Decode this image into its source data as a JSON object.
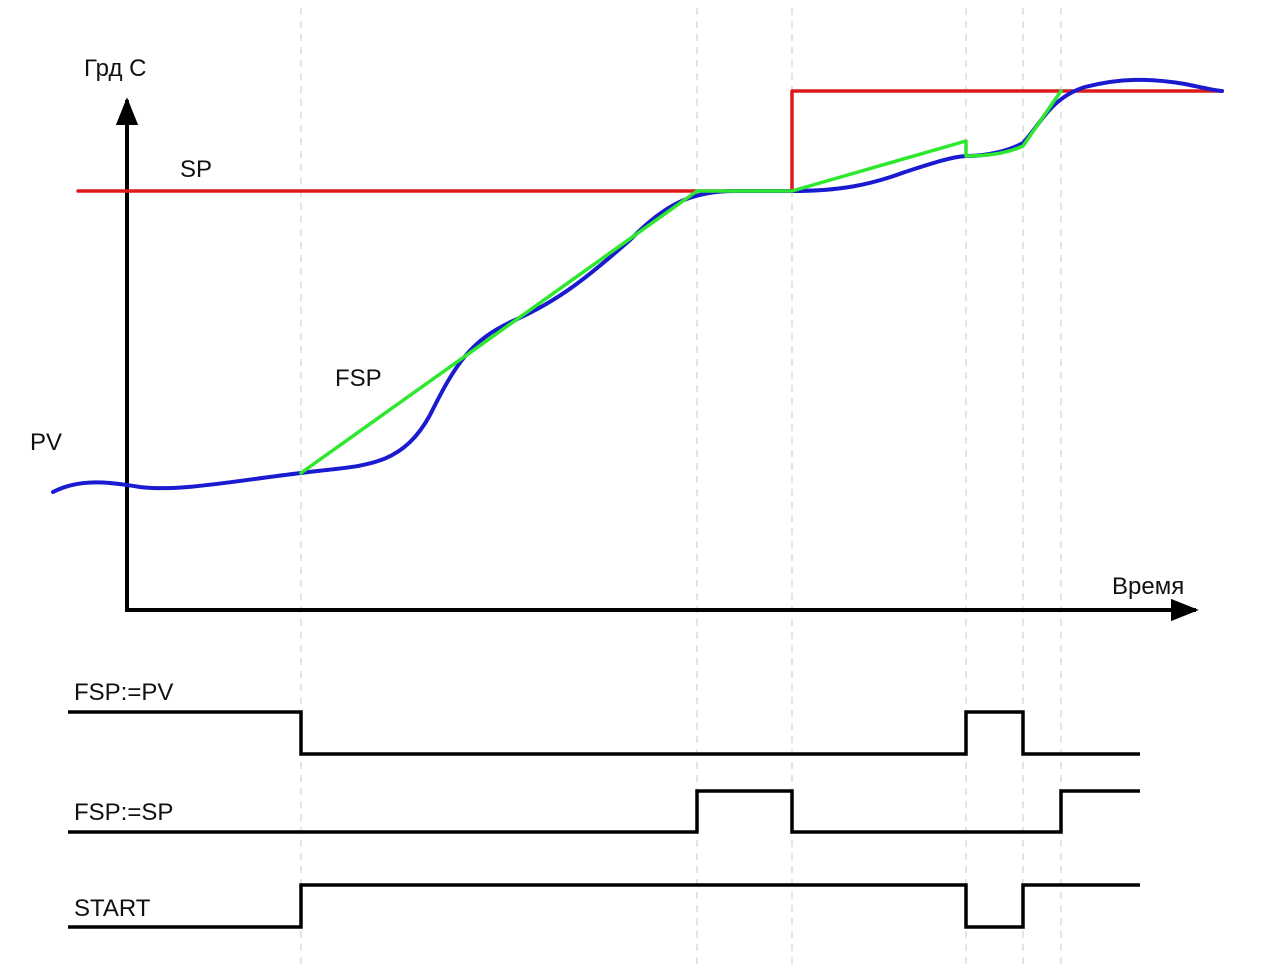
{
  "axes": {
    "y_label": "Грд С",
    "x_label": "Время"
  },
  "curves": {
    "sp": {
      "label": "SP",
      "color": "#dd1a1a"
    },
    "fsp": {
      "label": "FSP",
      "color": "#2ee82e"
    },
    "pv": {
      "label": "PV",
      "color": "#1a1ad0"
    }
  },
  "signals": {
    "fsp_pv": {
      "label": "FSP:=PV"
    },
    "fsp_sp": {
      "label": "FSP:=SP"
    },
    "start": {
      "label": "START"
    }
  },
  "colors": {
    "axis": "#000000",
    "signal": "#000000",
    "guide": "#c8c8c8"
  },
  "icons": [
    "y-axis-arrow-icon",
    "x-axis-arrow-icon"
  ]
}
